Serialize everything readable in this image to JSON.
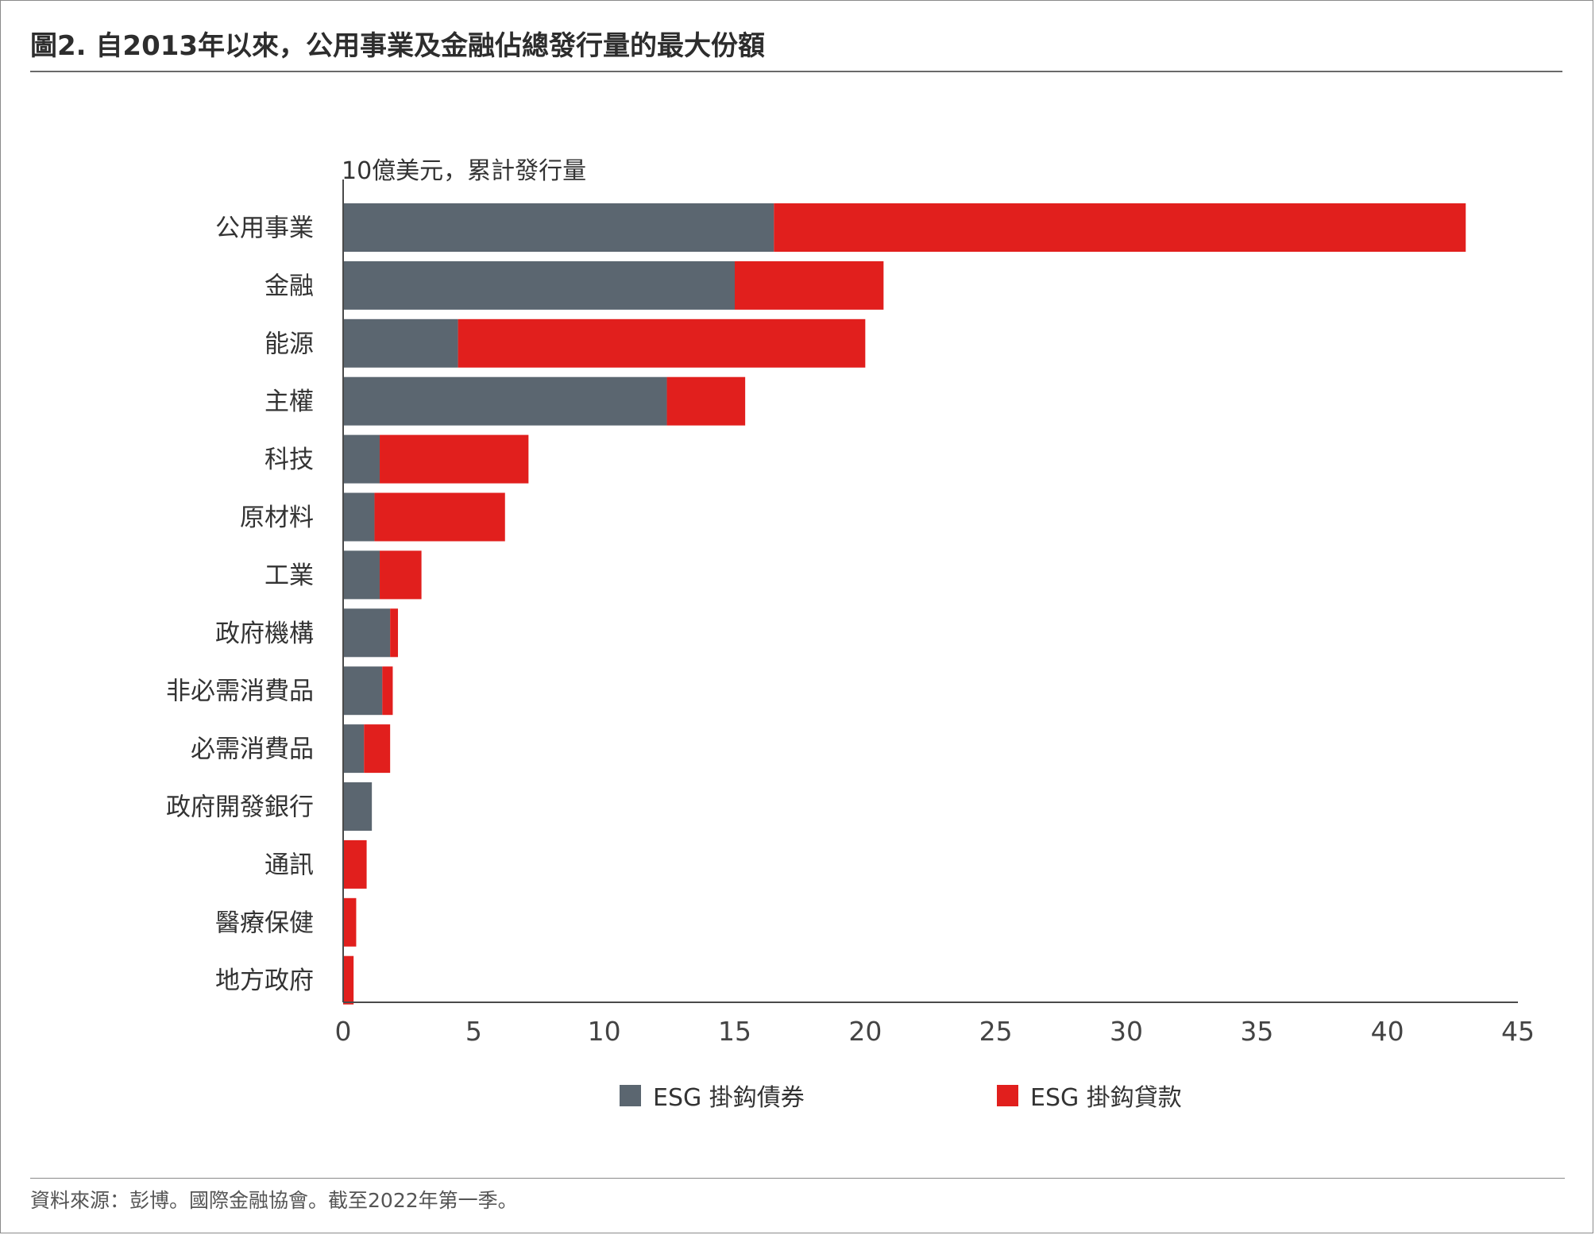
{
  "figure": {
    "title": "圖2. 自2013年以來，公用事業及金融佔總發行量的最大份額",
    "source": "資料來源：彭博。國際金融協會。截至2022年第一季。"
  },
  "chart_data": {
    "type": "bar",
    "orientation": "horizontal",
    "stacked": true,
    "title": "",
    "unit_label": "10億美元，累計發行量",
    "categories": [
      "公用事業",
      "金融",
      "能源",
      "主權",
      "科技",
      "原材料",
      "工業",
      "政府機構",
      "非必需消費品",
      "必需消費品",
      "政府開發銀行",
      "通訊",
      "醫療保健",
      "地方政府"
    ],
    "series": [
      {
        "name": "ESG 掛鈎債券",
        "color": "#5b6670",
        "values": [
          16.5,
          15.0,
          4.4,
          12.4,
          1.4,
          1.2,
          1.4,
          1.8,
          1.5,
          0.8,
          1.1,
          0,
          0,
          0
        ]
      },
      {
        "name": "ESG 掛鈎貸款",
        "color": "#e11f1d",
        "values": [
          26.5,
          5.7,
          15.6,
          3.0,
          5.7,
          5.0,
          1.6,
          0.3,
          0.4,
          1.0,
          0,
          0.9,
          0.5,
          0.4
        ]
      }
    ],
    "xlim": [
      0,
      45
    ],
    "xticks": [
      0,
      5,
      10,
      15,
      20,
      25,
      30,
      35,
      40,
      45
    ],
    "grid": false,
    "legend_position": "bottom"
  }
}
